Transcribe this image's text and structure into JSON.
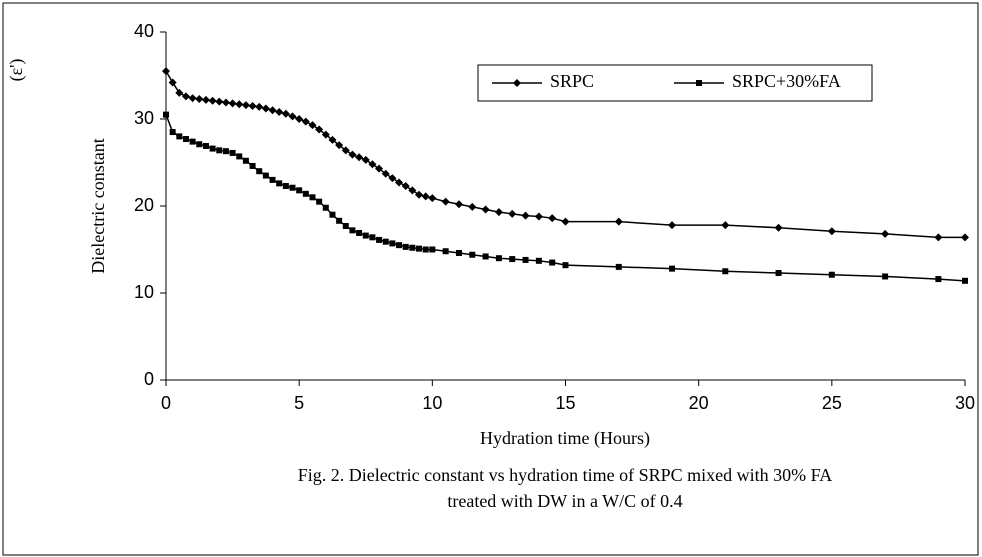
{
  "chart_data": {
    "type": "line",
    "annotation": "(ε')",
    "xlabel": "Hydration time (Hours)",
    "ylabel": "Dielectric constant",
    "caption": [
      "Fig. 2. Dielectric constant vs hydration time of SRPC mixed with  30% FA",
      "treated with DW in a W/C of  0.4"
    ],
    "x": [
      0,
      0.25,
      0.5,
      0.75,
      1,
      1.25,
      1.5,
      1.75,
      2,
      2.25,
      2.5,
      2.75,
      3,
      3.25,
      3.5,
      3.75,
      4,
      4.25,
      4.5,
      4.75,
      5,
      5.25,
      5.5,
      5.75,
      6,
      6.25,
      6.5,
      6.75,
      7,
      7.25,
      7.5,
      7.75,
      8,
      8.25,
      8.5,
      8.75,
      9,
      9.25,
      9.5,
      9.75,
      10,
      10.5,
      11,
      11.5,
      12,
      12.5,
      13,
      13.5,
      14,
      14.5,
      15,
      17,
      19,
      21,
      23,
      25,
      27,
      29,
      30
    ],
    "series": [
      {
        "name": "SRPC",
        "color": "#000000",
        "marker": "diamond",
        "values": [
          35.5,
          34.2,
          33.0,
          32.6,
          32.4,
          32.3,
          32.2,
          32.1,
          32.0,
          31.9,
          31.8,
          31.7,
          31.6,
          31.5,
          31.4,
          31.2,
          31.0,
          30.8,
          30.6,
          30.3,
          30.0,
          29.7,
          29.3,
          28.8,
          28.2,
          27.6,
          27.0,
          26.4,
          25.9,
          25.6,
          25.3,
          24.8,
          24.3,
          23.7,
          23.2,
          22.7,
          22.3,
          21.8,
          21.3,
          21.1,
          20.9,
          20.5,
          20.2,
          19.9,
          19.6,
          19.3,
          19.1,
          18.9,
          18.8,
          18.6,
          18.2,
          18.2,
          17.8,
          17.8,
          17.5,
          17.1,
          16.8,
          16.4,
          16.4
        ]
      },
      {
        "name": "SRPC+30%FA",
        "color": "#000000",
        "marker": "square",
        "values": [
          30.5,
          28.5,
          28.0,
          27.7,
          27.4,
          27.1,
          26.9,
          26.6,
          26.4,
          26.3,
          26.1,
          25.7,
          25.2,
          24.6,
          24.0,
          23.5,
          23.0,
          22.6,
          22.3,
          22.1,
          21.8,
          21.4,
          21.0,
          20.5,
          19.8,
          19.0,
          18.3,
          17.7,
          17.2,
          16.9,
          16.6,
          16.4,
          16.1,
          15.9,
          15.7,
          15.5,
          15.3,
          15.2,
          15.1,
          15.0,
          15.0,
          14.8,
          14.6,
          14.4,
          14.2,
          14.0,
          13.9,
          13.8,
          13.7,
          13.5,
          13.2,
          13.0,
          12.8,
          12.5,
          12.3,
          12.1,
          11.9,
          11.6,
          11.4
        ]
      }
    ],
    "xlim": [
      0,
      30
    ],
    "xticks": [
      0,
      5,
      10,
      15,
      20,
      25,
      30
    ],
    "ylim": [
      0,
      40
    ],
    "yticks": [
      0,
      10,
      20,
      30,
      40
    ],
    "grid": false,
    "legend": "top-right"
  }
}
